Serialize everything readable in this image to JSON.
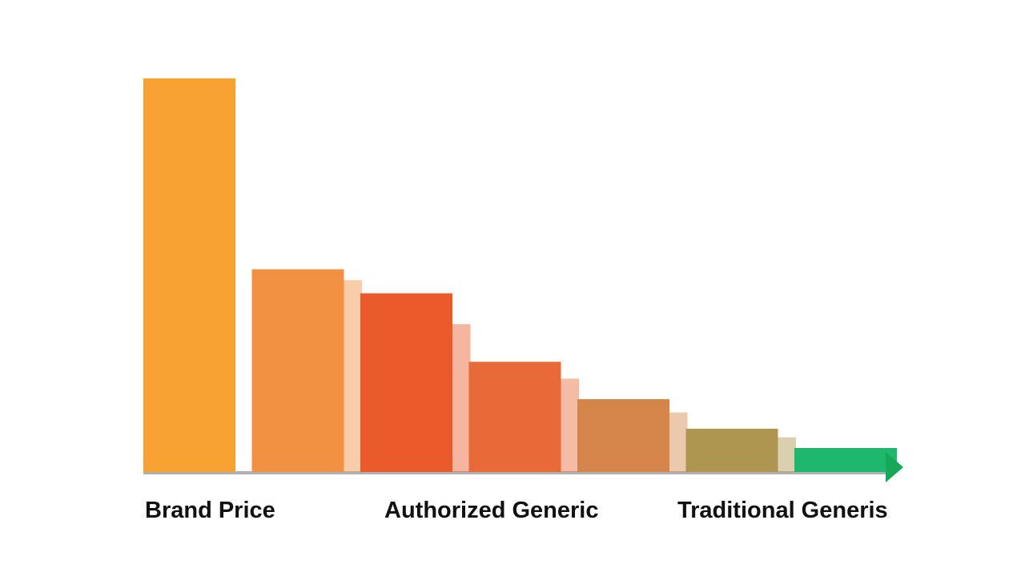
{
  "chart_data": {
    "type": "bar",
    "title": "",
    "xlabel": "",
    "ylabel": "",
    "ylim": [
      0,
      100
    ],
    "grid": false,
    "legend": "none",
    "values": [
      100,
      51.5,
      45.4,
      28,
      18.5,
      11,
      6.1
    ],
    "colors": [
      "#F7A233",
      "#F29141",
      "#EB5A2A",
      "#E86A38",
      "#D5844A",
      "#AE9650",
      "#1DB86C"
    ],
    "group_labels": [
      "Brand Price",
      "Authorized Generic",
      "Traditional Generis"
    ],
    "axis_color": "#B0B0B0",
    "arrow_color": "#17A85A"
  }
}
